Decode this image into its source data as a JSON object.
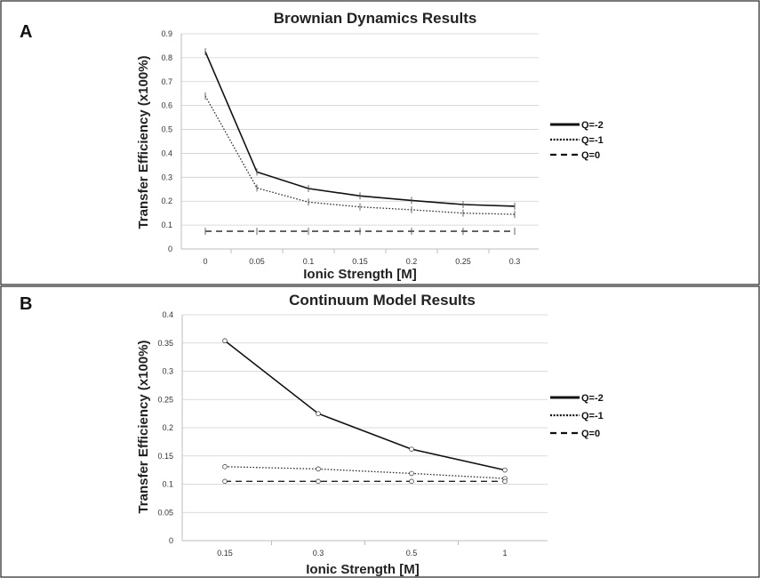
{
  "chart_data": [
    {
      "type": "line",
      "panel": "A",
      "title": "Brownian Dynamics Results",
      "xlabel": "Ionic Strength [M]",
      "ylabel": "Transfer Efficiency (x100%)",
      "categories": [
        "0",
        "0.05",
        "0.1",
        "0.15",
        "0.2",
        "0.25",
        "0.3"
      ],
      "ylim": [
        0,
        0.9
      ],
      "yticks": [
        "0",
        "0.1",
        "0.2",
        "0.3",
        "0.4",
        "0.5",
        "0.6",
        "0.7",
        "0.8",
        "0.9"
      ],
      "grid": true,
      "legend_position": "right",
      "series": [
        {
          "name": "Q=-2",
          "values": [
            0.825,
            0.322,
            0.253,
            0.222,
            0.203,
            0.186,
            0.179
          ],
          "line_style": "solid",
          "color": "#111111"
        },
        {
          "name": "Q=-1",
          "values": [
            0.64,
            0.255,
            0.196,
            0.176,
            0.164,
            0.15,
            0.145
          ],
          "line_style": "dotted",
          "color": "#333333"
        },
        {
          "name": "Q=0",
          "values": [
            0.074,
            0.074,
            0.074,
            0.074,
            0.074,
            0.074,
            0.074
          ],
          "line_style": "dashed",
          "color": "#222222"
        }
      ]
    },
    {
      "type": "line",
      "panel": "B",
      "title": "Continuum Model Results",
      "xlabel": "Ionic Strength [M]",
      "ylabel": "Transfer Efficiency (x100%)",
      "categories": [
        "0.15",
        "0.3",
        "0.5",
        "1"
      ],
      "ylim": [
        0,
        0.4
      ],
      "yticks": [
        "0",
        "0.05",
        "0.1",
        "0.15",
        "0.2",
        "0.25",
        "0.3",
        "0.35",
        "0.4"
      ],
      "grid": true,
      "legend_position": "right",
      "series": [
        {
          "name": "Q=-2",
          "values": [
            0.354,
            0.225,
            0.162,
            0.125
          ],
          "line_style": "solid",
          "color": "#111111"
        },
        {
          "name": "Q=-1",
          "values": [
            0.131,
            0.127,
            0.119,
            0.11
          ],
          "line_style": "dotted",
          "color": "#333333"
        },
        {
          "name": "Q=0",
          "values": [
            0.105,
            0.105,
            0.105,
            0.105
          ],
          "line_style": "dashed",
          "color": "#222222"
        }
      ]
    }
  ]
}
